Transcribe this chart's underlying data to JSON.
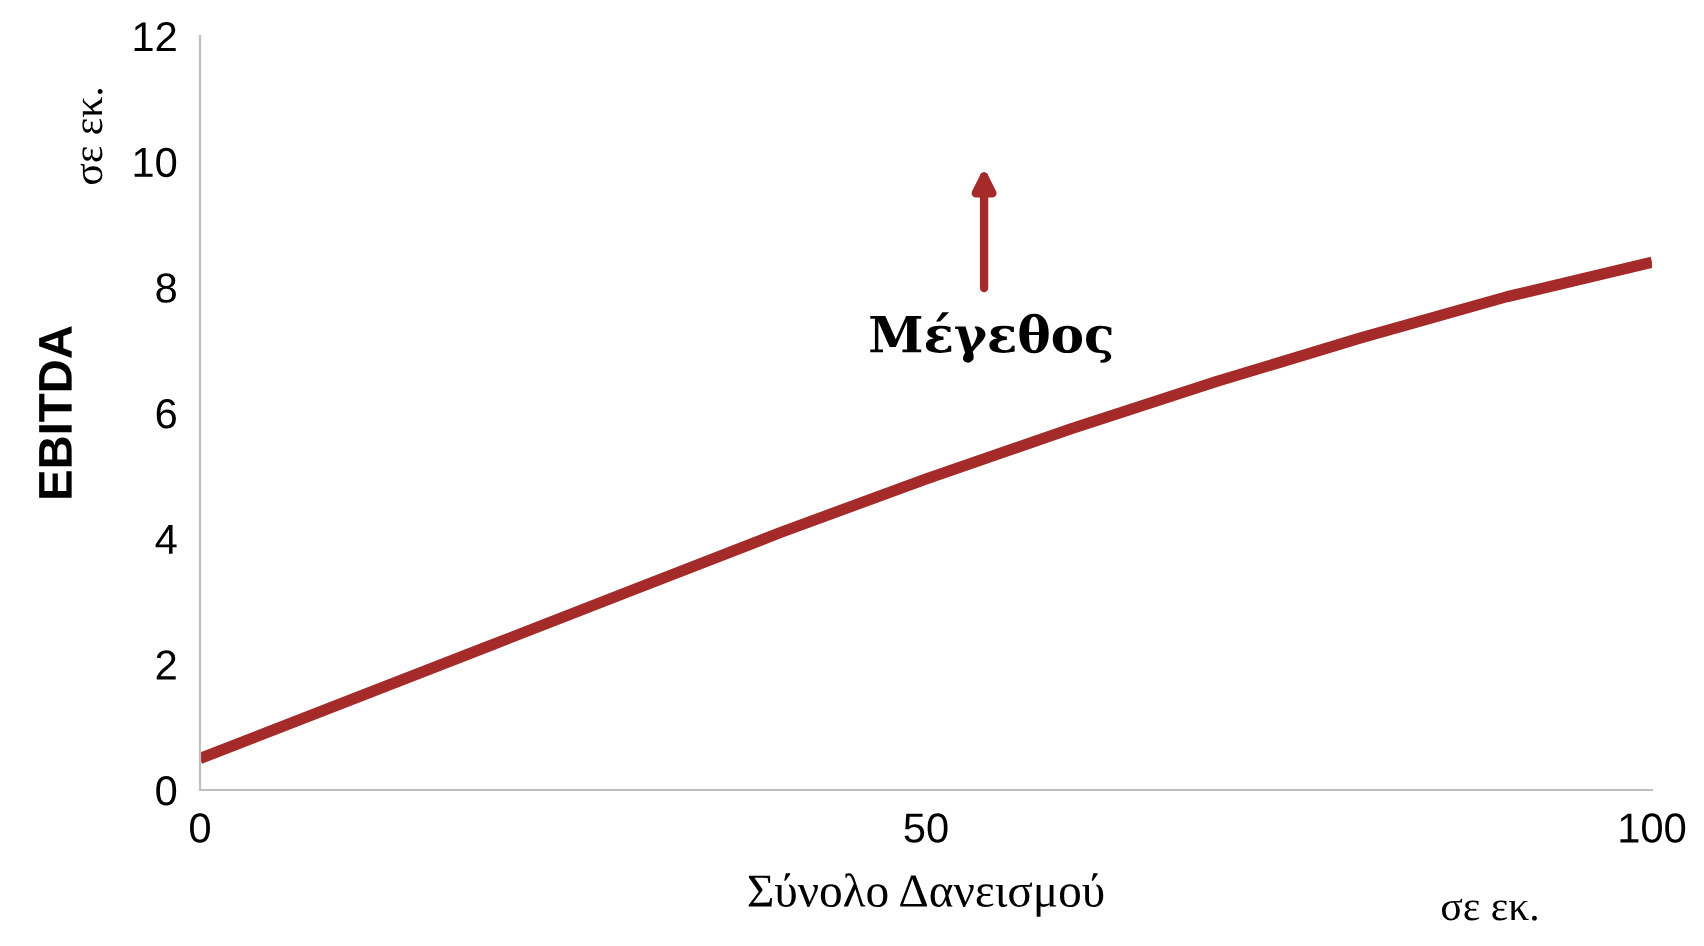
{
  "chart_data": {
    "type": "line",
    "xlabel": "Σύνολο Δανεισμού",
    "ylabel": "EBITDA",
    "annotations": [
      "Μέγεθος",
      "σε εκ.",
      "σε εκ."
    ],
    "x": [
      0,
      10,
      20,
      30,
      40,
      50,
      60,
      70,
      80,
      90,
      100
    ],
    "series": [
      {
        "color": "#a52a2a",
        "values": [
          0.5,
          1.4,
          2.3,
          3.2,
          4.1,
          4.95,
          5.75,
          6.5,
          7.2,
          7.85,
          8.4
        ]
      }
    ],
    "xlim": [
      0,
      100
    ],
    "xticks": [
      0,
      50,
      100
    ],
    "ylim": [
      0,
      12
    ],
    "yticks": [
      0,
      2,
      4,
      6,
      8,
      10,
      12
    ],
    "grid": false,
    "legend": false
  }
}
